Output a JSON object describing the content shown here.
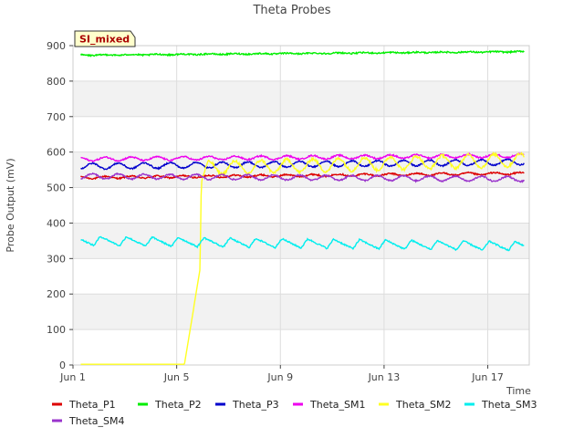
{
  "chart_data": {
    "type": "line",
    "title": "Theta Probes",
    "badge": "SI_mixed",
    "xlabel": "Time",
    "ylabel": "Probe Output (mV)",
    "xlim": [
      1,
      18.6
    ],
    "ylim": [
      0,
      900
    ],
    "x_ticks": [
      {
        "value": 1,
        "label": "Jun 1"
      },
      {
        "value": 5,
        "label": "Jun 5"
      },
      {
        "value": 9,
        "label": "Jun 9"
      },
      {
        "value": 13,
        "label": "Jun 13"
      },
      {
        "value": 17,
        "label": "Jun 17"
      }
    ],
    "y_ticks": [
      0,
      100,
      200,
      300,
      400,
      500,
      600,
      700,
      800,
      900
    ],
    "series": [
      {
        "name": "Theta_P1",
        "color": "#dd0000",
        "base": 528,
        "trend": 12,
        "amp": 3,
        "noise": 2,
        "phase": 0.0
      },
      {
        "name": "Theta_P2",
        "color": "#00ee00",
        "base": 873,
        "trend": 10,
        "amp": 1,
        "noise": 2,
        "phase": 0.0
      },
      {
        "name": "Theta_P3",
        "color": "#0000cc",
        "base": 560,
        "trend": 12,
        "amp": 8,
        "noise": 2,
        "phase": 0.5
      },
      {
        "name": "Theta_SM1",
        "color": "#ee00ee",
        "base": 580,
        "trend": 10,
        "amp": 5,
        "noise": 2,
        "phase": 1.0
      },
      {
        "name": "Theta_SM2",
        "color": "#ffff22",
        "points": [
          [
            1.3,
            2
          ],
          [
            4.2,
            2
          ],
          [
            5.3,
            2
          ],
          [
            5.9,
            270
          ],
          [
            5.95,
            520
          ],
          [
            6.2,
            555
          ],
          [
            18.4,
            578
          ]
        ],
        "amp": 18,
        "noise": 4,
        "phase": 2.0
      },
      {
        "name": "Theta_SM3",
        "color": "#00eeee",
        "base": 350,
        "trend": -15,
        "amp": 13,
        "noise": 2,
        "phase": 1.2
      },
      {
        "name": "Theta_SM4",
        "color": "#9933cc",
        "base": 532,
        "trend": -8,
        "amp": 7,
        "noise": 2,
        "phase": 2.5
      }
    ]
  }
}
